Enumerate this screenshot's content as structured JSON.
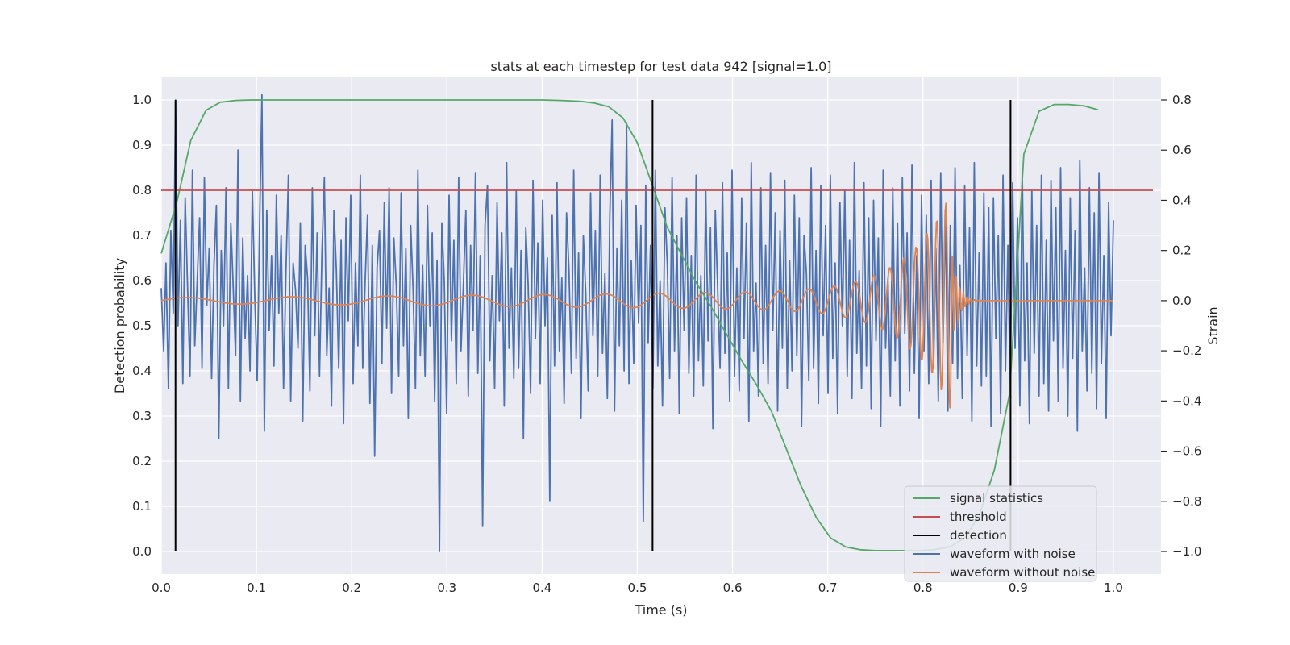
{
  "chart_data": {
    "type": "line",
    "title": "stats at each timestep for test data 942 [signal=1.0]",
    "xlabel": "Time (s)",
    "ylabel_left": "Detection probability",
    "ylabel_right": "Strain",
    "xlim": [
      0.0,
      1.05
    ],
    "ylim_left": [
      -0.05,
      1.05
    ],
    "ylim_right": [
      -1.09,
      0.89
    ],
    "x_ticks": [
      "0.0",
      "0.1",
      "0.2",
      "0.3",
      "0.4",
      "0.5",
      "0.6",
      "0.7",
      "0.8",
      "0.9",
      "1.0"
    ],
    "y_ticks_left": [
      "0.0",
      "0.1",
      "0.2",
      "0.3",
      "0.4",
      "0.5",
      "0.6",
      "0.7",
      "0.8",
      "0.9",
      "1.0"
    ],
    "y_ticks_right": [
      "−1.0",
      "−0.8",
      "−0.6",
      "−0.4",
      "−0.2",
      "0.0",
      "0.2",
      "0.4",
      "0.6",
      "0.8"
    ],
    "grid": true,
    "legend_position": "bottom-right",
    "threshold": 0.8,
    "detections": [
      0.015,
      0.516,
      0.892
    ],
    "series": [
      {
        "name": "signal statistics",
        "color": "#55a868",
        "axis": "left",
        "x": [
          0.0,
          0.016,
          0.031,
          0.047,
          0.062,
          0.078,
          0.094,
          0.109,
          0.125,
          0.2,
          0.3,
          0.4,
          0.42,
          0.44,
          0.455,
          0.47,
          0.485,
          0.5,
          0.516,
          0.531,
          0.547,
          0.562,
          0.578,
          0.594,
          0.609,
          0.625,
          0.641,
          0.656,
          0.672,
          0.688,
          0.703,
          0.719,
          0.734,
          0.75,
          0.766,
          0.781,
          0.797,
          0.812,
          0.828,
          0.844,
          0.859,
          0.875,
          0.891,
          0.906,
          0.922,
          0.938,
          0.953,
          0.969,
          0.984
        ],
        "values": [
          0.66,
          0.77,
          0.91,
          0.977,
          0.995,
          0.999,
          1.0,
          1.0,
          1.0,
          1.0,
          1.0,
          1.0,
          0.999,
          0.997,
          0.993,
          0.985,
          0.96,
          0.905,
          0.81,
          0.72,
          0.655,
          0.595,
          0.54,
          0.48,
          0.425,
          0.37,
          0.31,
          0.23,
          0.145,
          0.075,
          0.03,
          0.01,
          0.004,
          0.002,
          0.002,
          0.002,
          0.002,
          0.004,
          0.01,
          0.03,
          0.08,
          0.18,
          0.35,
          0.88,
          0.975,
          0.99,
          0.99,
          0.987,
          0.978
        ]
      },
      {
        "name": "threshold",
        "color": "#c44e52",
        "axis": "left",
        "x": [
          0.0,
          1.05
        ],
        "values": [
          0.8,
          0.8
        ]
      },
      {
        "name": "detection",
        "color": "#000000",
        "axis": "left",
        "x": [
          0.015,
          0.516,
          0.892
        ],
        "values": [
          1.0,
          1.0,
          1.0
        ]
      },
      {
        "name": "waveform with noise",
        "color": "#4c72b0",
        "axis": "right",
        "x_range": [
          0.0,
          1.0
        ],
        "values": [
          0.05,
          -0.2,
          0.15,
          -0.35,
          0.28,
          -0.05,
          0.8,
          -0.1,
          0.32,
          -0.33,
          0.41,
          0.05,
          -0.3,
          0.52,
          -0.18,
          0.08,
          0.33,
          -0.27,
          0.49,
          -0.02,
          0.21,
          -0.31,
          0.14,
          0.38,
          -0.55,
          0.2,
          -0.1,
          0.45,
          -0.35,
          0.31,
          0.06,
          -0.22,
          0.6,
          -0.4,
          0.25,
          -0.15,
          0.1,
          -0.28,
          0.44,
          0.02,
          -0.32,
          0.3,
          0.82,
          -0.52,
          0.36,
          -0.12,
          0.18,
          -0.26,
          0.42,
          -0.05,
          0.26,
          -0.35,
          0.12,
          0.5,
          -0.4,
          0.15,
          0.04,
          -0.19,
          0.31,
          -0.48,
          0.22,
          0.09,
          -0.36,
          0.45,
          -0.14,
          0.27,
          -0.3,
          0.19,
          0.49,
          -0.22,
          0.05,
          -0.42,
          0.36,
          0.12,
          -0.27,
          0.24,
          -0.49,
          0.33,
          -0.08,
          0.42,
          -0.33,
          0.15,
          -0.18,
          0.5,
          -0.27,
          0.07,
          0.34,
          -0.41,
          0.22,
          -0.62,
          0.13,
          0.28,
          -0.25,
          0.39,
          -0.11,
          0.45,
          -0.37,
          0.25,
          0.06,
          -0.3,
          0.43,
          -0.18,
          0.21,
          -0.47,
          0.3,
          0.05,
          -0.35,
          0.52,
          -0.22,
          0.14,
          -0.3,
          0.38,
          -0.1,
          0.27,
          -0.4,
          0.16,
          -1.0,
          0.31,
          0.08,
          -0.45,
          0.42,
          -0.16,
          0.24,
          -0.33,
          0.49,
          -0.2,
          0.07,
          0.36,
          -0.38,
          0.22,
          -0.12,
          0.51,
          -0.29,
          0.18,
          -0.9,
          0.3,
          0.46,
          -0.24,
          0.1,
          -0.35,
          0.39,
          -0.08,
          0.27,
          -0.42,
          0.55,
          -0.19,
          0.13,
          -0.31,
          0.44,
          -0.27,
          0.2,
          -0.55,
          0.29,
          0.06,
          -0.37,
          0.48,
          -0.15,
          0.23,
          -0.33,
          0.4,
          -0.1,
          0.17,
          -0.8,
          0.34,
          -0.26,
          0.47,
          -0.2,
          0.09,
          -0.41,
          0.35,
          0.12,
          -0.29,
          0.52,
          -0.23,
          0.19,
          -0.47,
          0.26,
          0.03,
          -0.36,
          0.43,
          -0.14,
          0.28,
          -0.3,
          0.5,
          -0.21,
          0.11,
          -0.39,
          0.33,
          0.72,
          -0.44,
          0.21,
          -0.18,
          0.4,
          -0.28,
          0.71,
          -0.33,
          0.16,
          -0.25,
          0.38,
          -0.09,
          0.3,
          -0.88,
          0.46,
          -0.17,
          0.22,
          -0.35,
          0.52,
          -0.26,
          0.08,
          -0.42,
          0.37,
          0.14,
          -0.31,
          0.49,
          -0.2,
          0.26,
          -0.45,
          0.33,
          -0.12,
          0.41,
          -0.29,
          0.18,
          -0.38,
          0.5,
          -0.24,
          0.1,
          -0.34,
          0.44,
          -0.16,
          0.29,
          -0.51,
          0.36,
          0.05,
          -0.27,
          0.47,
          -0.21,
          0.19,
          -0.4,
          0.52,
          -0.3,
          0.13,
          -0.36,
          0.41,
          -0.15,
          0.31,
          -0.48,
          0.55,
          -0.2,
          0.07,
          -0.38,
          0.45,
          -0.25,
          0.22,
          -0.33,
          0.51,
          -0.12,
          0.35,
          -0.44,
          0.28,
          -0.19,
          0.48,
          -0.35,
          0.16,
          -0.28,
          0.42,
          -0.22,
          0.33,
          -0.5,
          0.26,
          0.11,
          -0.32,
          0.53,
          -0.27,
          0.2,
          -0.41,
          0.46,
          -0.14,
          0.3,
          -0.37,
          0.5,
          -0.23,
          0.15,
          -0.45,
          0.39,
          -0.1,
          0.44,
          -0.3,
          0.24,
          -0.39,
          0.55,
          -0.21,
          0.12,
          -0.35,
          0.47,
          -0.26,
          0.33,
          -0.43,
          0.4,
          -0.16,
          0.25,
          -0.5,
          0.52,
          -0.19,
          0.09,
          -0.38,
          0.45,
          -0.24,
          0.31,
          -0.42,
          0.49,
          -0.13,
          0.27,
          -0.36,
          0.54,
          -0.29,
          0.18,
          -0.47,
          0.42,
          -0.2,
          0.34,
          -0.33,
          0.48,
          -0.27,
          0.21,
          -0.4,
          0.51,
          -0.17,
          0.36,
          -0.44,
          0.3,
          -0.25,
          0.53,
          -0.31,
          0.14,
          -0.39,
          0.46,
          -0.22,
          0.29,
          -0.48,
          0.55,
          -0.26,
          0.19,
          -0.34,
          0.43,
          -0.3,
          0.37,
          -0.5,
          0.41,
          -0.15,
          0.26,
          -0.45,
          0.5,
          -0.28,
          0.22,
          -0.37,
          0.47,
          -0.19,
          0.33,
          -0.42,
          0.52,
          -0.24,
          0.15,
          -0.49,
          0.44,
          -0.21,
          0.3,
          -0.38,
          0.5,
          -0.33,
          0.24,
          -0.44,
          0.48,
          -0.16,
          0.37,
          -0.4,
          0.53,
          -0.27,
          0.2,
          -0.46,
          0.41,
          -0.23,
          0.28,
          -0.52,
          0.56,
          -0.2,
          0.13,
          -0.36,
          0.45,
          -0.29,
          0.35,
          -0.43,
          0.51,
          -0.25,
          0.18,
          -0.47,
          0.39,
          -0.14,
          0.32
        ]
      },
      {
        "name": "waveform without noise",
        "color": "#dd8452",
        "axis": "right",
        "x_range": [
          0.0,
          1.0
        ],
        "values": []
      }
    ]
  }
}
